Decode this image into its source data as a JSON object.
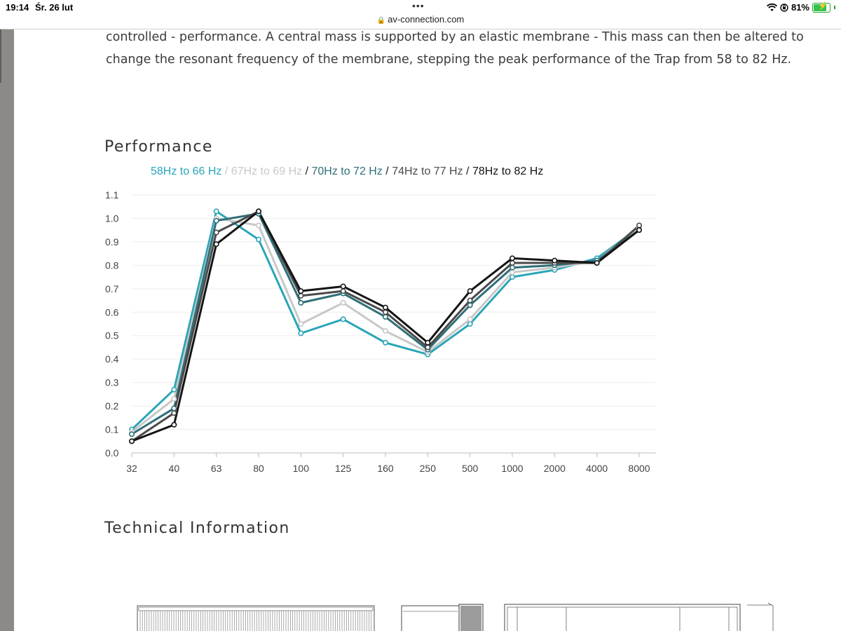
{
  "status_bar": {
    "time": "19:14",
    "date": "Śr. 26 lut",
    "battery_percent": "81%",
    "battery_level": 0.81,
    "icons": [
      "wifi-icon",
      "orientation-lock-icon",
      "battery-icon"
    ]
  },
  "browser": {
    "dots": "•••",
    "url": "av-connection.com"
  },
  "article": {
    "intro_line1": "controlled - performance. A central mass is supported by an elastic membrane - This mass can then be altered to",
    "intro_line2": "change the resonant frequency of the membrane, stepping the peak performance of the Trap from 58 to 82 Hz.",
    "performance_heading": "Performance",
    "technical_heading": "Technical Information"
  },
  "colors": {
    "teal": "#2aa5b8",
    "light_gray": "#c8c8c8",
    "dark_teal": "#2f6f78",
    "dark_gray": "#4a4a4a",
    "black": "#141414",
    "axis_text": "#444444",
    "grid": "#eeeeee"
  },
  "chart_data": {
    "type": "line",
    "title": "",
    "xlabel": "",
    "ylabel": "",
    "categories": [
      "32",
      "40",
      "63",
      "80",
      "100",
      "125",
      "160",
      "250",
      "500",
      "1000",
      "2000",
      "4000",
      "8000"
    ],
    "y_ticks": [
      "0.0",
      "0.1",
      "0.2",
      "0.3",
      "0.4",
      "0.5",
      "0.6",
      "0.7",
      "0.8",
      "0.9",
      "1.0",
      "1.1"
    ],
    "ylim": [
      0,
      1.1
    ],
    "grid": true,
    "legend": [
      {
        "label": "58Hz to 66 Hz",
        "color": "#2aa5b8"
      },
      {
        "label": "67Hz to 69 Hz",
        "color": "#c8c8c8"
      },
      {
        "label": "70Hz to 72 Hz",
        "color": "#2f6f78"
      },
      {
        "label": "74Hz to 77 Hz",
        "color": "#4a4a4a"
      },
      {
        "label": "78Hz to 82 Hz",
        "color": "#141414"
      }
    ],
    "legend_separator": " / ",
    "legend_position": "top",
    "series": [
      {
        "name": "58Hz to 66 Hz",
        "color": "#2aa5b8",
        "values": [
          0.1,
          0.27,
          1.03,
          0.91,
          0.51,
          0.57,
          0.47,
          0.42,
          0.55,
          0.75,
          0.78,
          0.83,
          0.96
        ]
      },
      {
        "name": "67Hz to 69 Hz",
        "color": "#c8c8c8",
        "values": [
          0.09,
          0.23,
          1.0,
          0.97,
          0.55,
          0.64,
          0.52,
          0.43,
          0.57,
          0.77,
          0.79,
          0.82,
          0.96
        ]
      },
      {
        "name": "70Hz to 72 Hz",
        "color": "#2f6f78",
        "values": [
          0.08,
          0.19,
          0.99,
          1.02,
          0.64,
          0.68,
          0.58,
          0.44,
          0.63,
          0.79,
          0.8,
          0.82,
          0.95
        ]
      },
      {
        "name": "74Hz to 77 Hz",
        "color": "#4a4a4a",
        "values": [
          0.05,
          0.17,
          0.94,
          1.03,
          0.67,
          0.69,
          0.6,
          0.45,
          0.65,
          0.81,
          0.81,
          0.81,
          0.97
        ]
      },
      {
        "name": "78Hz to 82 Hz",
        "color": "#141414",
        "values": [
          0.05,
          0.12,
          0.89,
          1.03,
          0.69,
          0.71,
          0.62,
          0.47,
          0.69,
          0.83,
          0.82,
          0.81,
          0.95
        ]
      }
    ]
  }
}
